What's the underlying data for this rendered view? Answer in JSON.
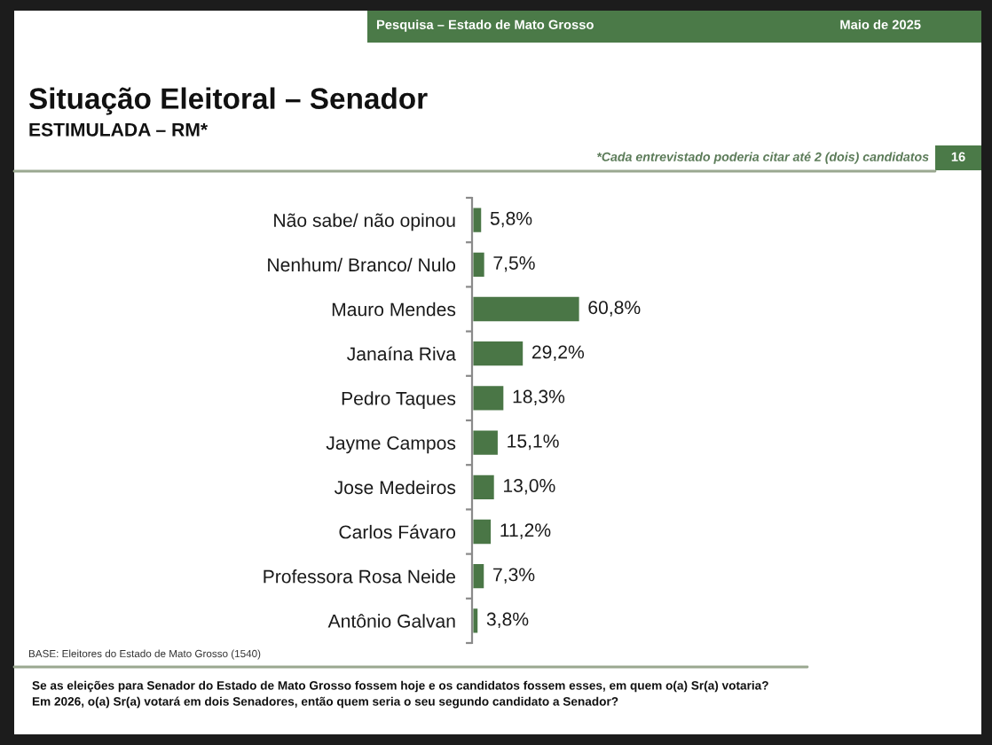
{
  "chart_data": {
    "type": "bar",
    "orientation": "horizontal",
    "title": "Situação Eleitoral – Senador",
    "subtitle": "ESTIMULADA – RM*",
    "categories": [
      "Não sabe/ não opinou",
      "Nenhum/ Branco/ Nulo",
      "Mauro Mendes",
      "Janaína Riva",
      "Pedro Taques",
      "Jayme Campos",
      "Jose Medeiros",
      "Carlos Fávaro",
      "Professora Rosa Neide",
      "Antônio Galvan"
    ],
    "values": [
      5.8,
      7.5,
      60.8,
      29.2,
      18.3,
      15.1,
      13.0,
      11.2,
      7.3,
      3.8
    ],
    "value_labels": [
      "5,8%",
      "7,5%",
      "60,8%",
      "29,2%",
      "18,3%",
      "15,1%",
      "13,0%",
      "11,2%",
      "7,3%",
      "3,8%"
    ],
    "color": "#4a7646",
    "tick_labels": "y",
    "annotations": [
      "Pesquisa – Estado de Mato Grosso",
      "Maio de 2025",
      "*Cada entrevistado poderia citar até 2 (dois) candidatos",
      "16",
      "BASE: Eleitores do Estado de Mato Grosso (1540)",
      "Se as eleições para Senador do Estado de Mato Grosso fossem hoje e os candidatos fossem esses, em quem o(a) Sr(a) votaria?",
      "Em 2026, o(a) Sr(a) votará em dois Senadores, então quem seria o seu segundo candidato a Senador?"
    ]
  }
}
